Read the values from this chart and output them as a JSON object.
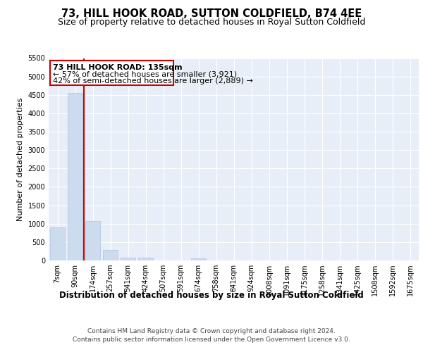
{
  "title1": "73, HILL HOOK ROAD, SUTTON COLDFIELD, B74 4EE",
  "title2": "Size of property relative to detached houses in Royal Sutton Coldfield",
  "xlabel": "Distribution of detached houses by size in Royal Sutton Coldfield",
  "ylabel": "Number of detached properties",
  "categories": [
    "7sqm",
    "90sqm",
    "174sqm",
    "257sqm",
    "341sqm",
    "424sqm",
    "507sqm",
    "591sqm",
    "674sqm",
    "758sqm",
    "841sqm",
    "924sqm",
    "1008sqm",
    "1091sqm",
    "1175sqm",
    "1258sqm",
    "1341sqm",
    "1425sqm",
    "1508sqm",
    "1592sqm",
    "1675sqm"
  ],
  "values": [
    900,
    4560,
    1075,
    295,
    80,
    70,
    0,
    0,
    60,
    0,
    0,
    0,
    0,
    0,
    0,
    0,
    0,
    0,
    0,
    0,
    0
  ],
  "bar_color": "#ccdcee",
  "bar_edge_color": "#aac4de",
  "vline_color": "#cc0000",
  "annotation_box_color": "#cc0000",
  "annotation_title": "73 HILL HOOK ROAD: 135sqm",
  "annotation_line1": "← 57% of detached houses are smaller (3,921)",
  "annotation_line2": "42% of semi-detached houses are larger (2,889) →",
  "ylim": [
    0,
    5500
  ],
  "yticks": [
    0,
    500,
    1000,
    1500,
    2000,
    2500,
    3000,
    3500,
    4000,
    4500,
    5000,
    5500
  ],
  "footer1": "Contains HM Land Registry data © Crown copyright and database right 2024.",
  "footer2": "Contains public sector information licensed under the Open Government Licence v3.0.",
  "plot_bg_color": "#e8eef8",
  "title1_fontsize": 10.5,
  "title2_fontsize": 9,
  "xlabel_fontsize": 8.5,
  "ylabel_fontsize": 8,
  "tick_fontsize": 7,
  "footer_fontsize": 6.5
}
